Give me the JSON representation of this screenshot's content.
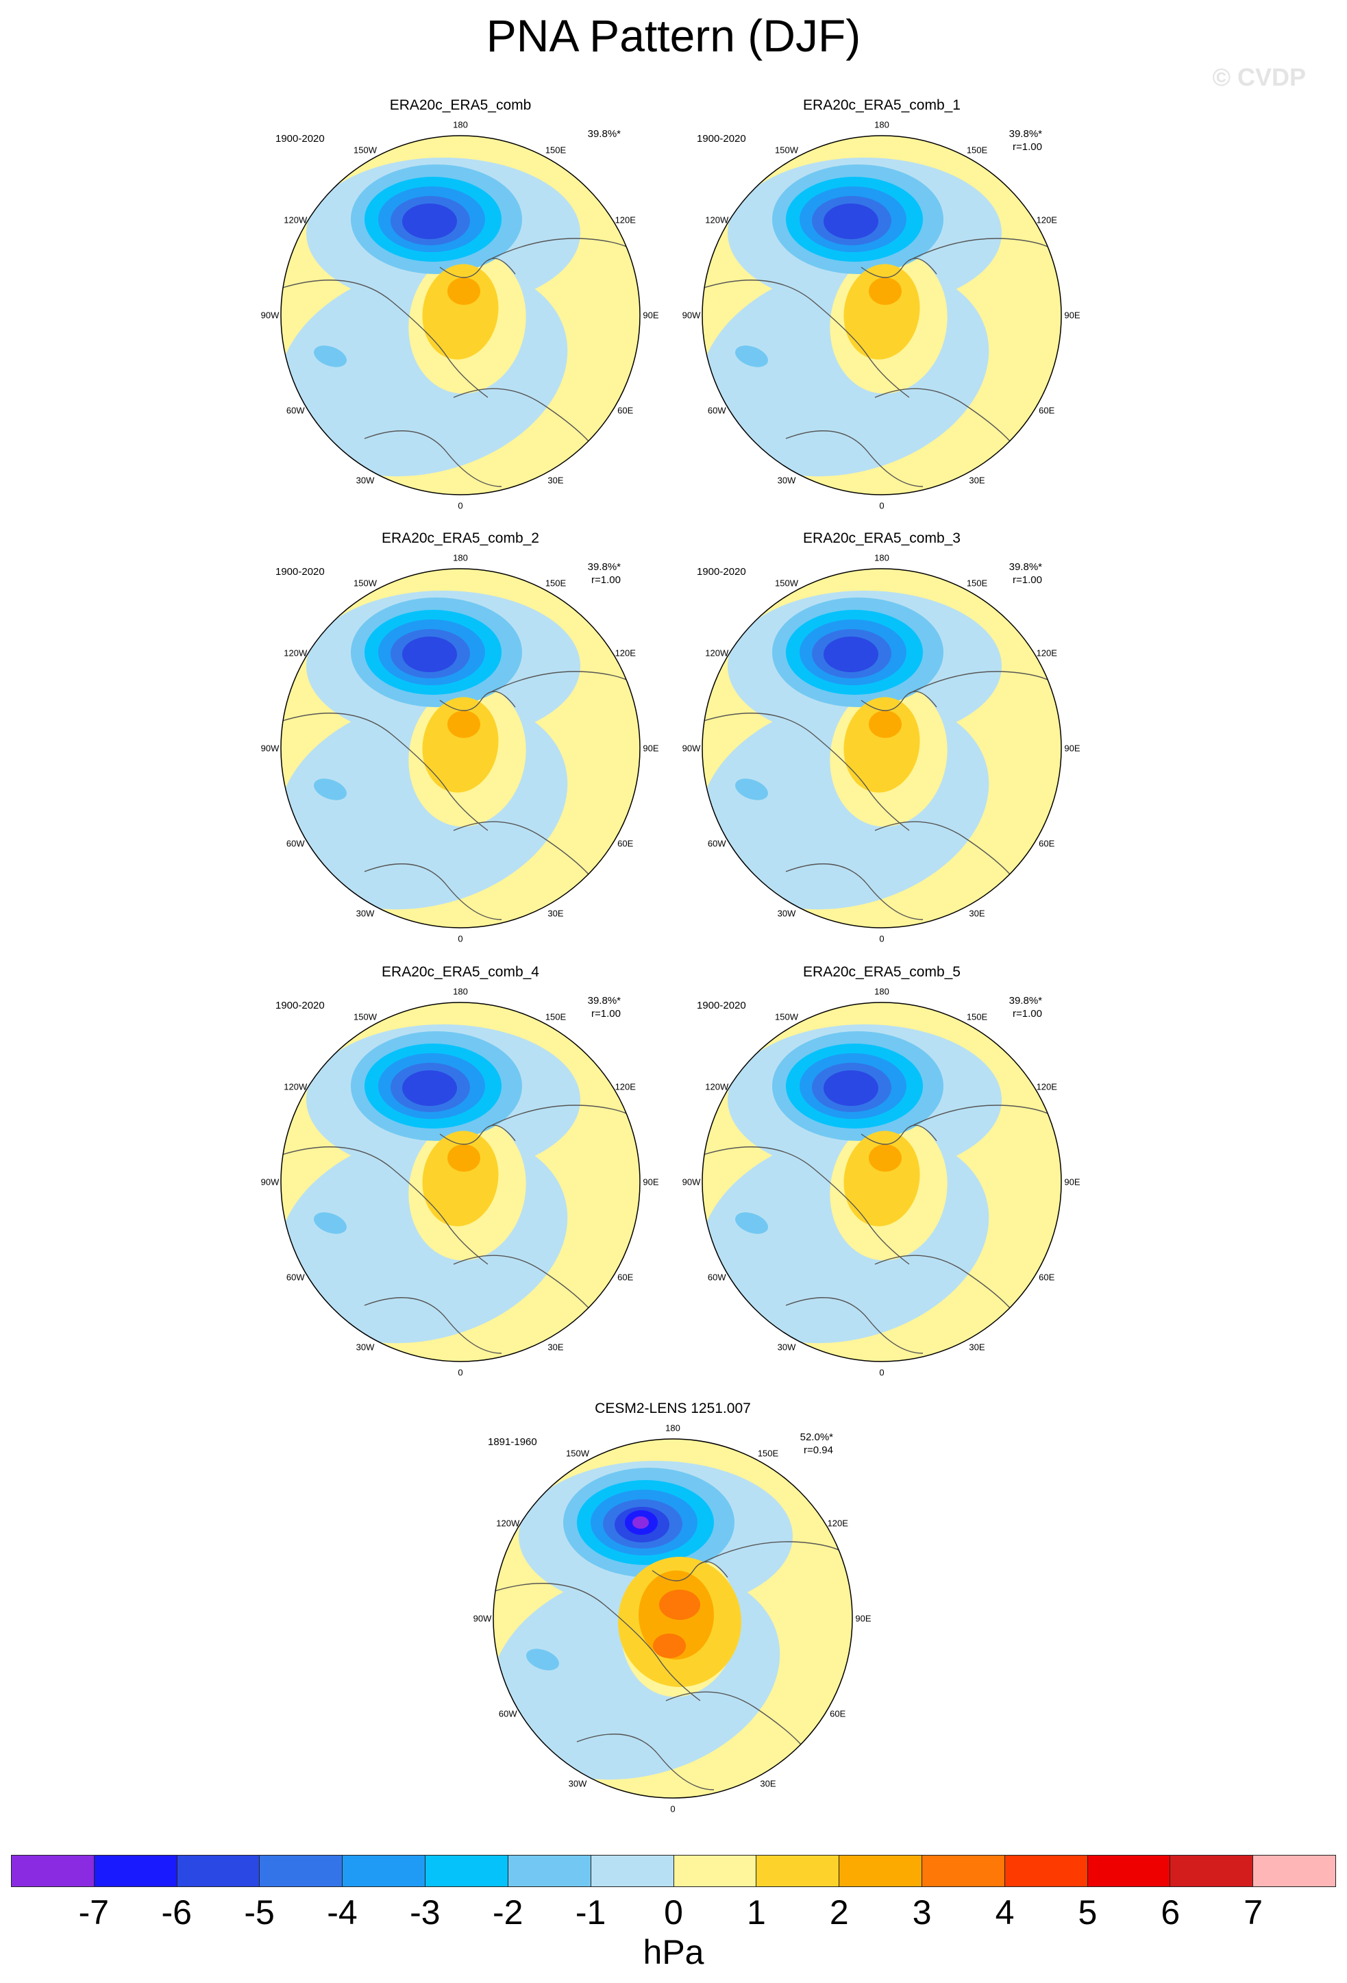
{
  "title": "PNA Pattern (DJF)",
  "watermark": "© CVDP",
  "longitude_labels": [
    "180",
    "150E",
    "120E",
    "90E",
    "60E",
    "30E",
    "0",
    "30W",
    "60W",
    "90W",
    "120W",
    "150W"
  ],
  "panels": [
    {
      "name": "ERA20c_ERA5_comb",
      "years": "1900-2020",
      "pct": "39.8%*",
      "corr": ""
    },
    {
      "name": "ERA20c_ERA5_comb_1",
      "years": "1900-2020",
      "pct": "39.8%*",
      "corr": "r=1.00"
    },
    {
      "name": "ERA20c_ERA5_comb_2",
      "years": "1900-2020",
      "pct": "39.8%*",
      "corr": "r=1.00"
    },
    {
      "name": "ERA20c_ERA5_comb_3",
      "years": "1900-2020",
      "pct": "39.8%*",
      "corr": "r=1.00"
    },
    {
      "name": "ERA20c_ERA5_comb_4",
      "years": "1900-2020",
      "pct": "39.8%*",
      "corr": "r=1.00"
    },
    {
      "name": "ERA20c_ERA5_comb_5",
      "years": "1900-2020",
      "pct": "39.8%*",
      "corr": "r=1.00"
    },
    {
      "name": "CESM2-LENS 1251.007",
      "years": "1891-1960",
      "pct": "52.0%*",
      "corr": "r=0.94"
    }
  ],
  "colorbar": {
    "unit": "hPa",
    "labels": [
      "-7",
      "-6",
      "-5",
      "-4",
      "-3",
      "-2",
      "-1",
      "0",
      "1",
      "2",
      "3",
      "4",
      "5",
      "6",
      "7"
    ],
    "colors": [
      "#8a2be2",
      "#1a1aff",
      "#2a48e4",
      "#3375e8",
      "#1f9bf5",
      "#06c2fb",
      "#72c8f2",
      "#b8e0f4",
      "#fff59a",
      "#fdd32b",
      "#fdaa00",
      "#fd7806",
      "#fd3a00",
      "#ee0000",
      "#d31c1c",
      "#ffb6b6"
    ]
  }
}
